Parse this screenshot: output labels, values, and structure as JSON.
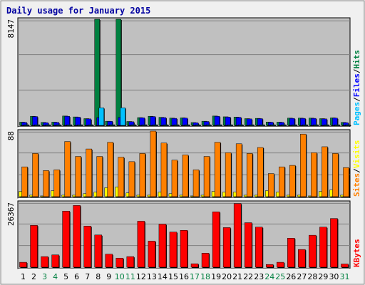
{
  "chart_data": {
    "type": "bar",
    "title": "Daily usage for January 2015",
    "categories": [
      "1",
      "2",
      "3",
      "4",
      "5",
      "6",
      "7",
      "8",
      "9",
      "10",
      "11",
      "12",
      "13",
      "14",
      "15",
      "16",
      "17",
      "18",
      "19",
      "20",
      "21",
      "22",
      "23",
      "24",
      "25",
      "26",
      "27",
      "28",
      "29",
      "30",
      "31"
    ],
    "weekend_days": [
      "3",
      "4",
      "10",
      "11",
      "17",
      "18",
      "24",
      "25",
      "31"
    ],
    "colors": {
      "background": "#c0c0c0",
      "frame": "#f0f0f0",
      "title": "#0000a0",
      "hits": "#008040",
      "files": "#0000ff",
      "pages": "#00c0ff",
      "visits": "#ffff00",
      "sites": "#ff8000",
      "kbytes": "#ff0000",
      "weekday_label": "#000000",
      "weekend_label": "#008040"
    },
    "panels": [
      {
        "max_label": "8147",
        "ylim": [
          0,
          8147
        ],
        "legend": [
          {
            "text": "Pages",
            "color": "#00c0ff"
          },
          {
            "text": "/",
            "color": "#000000"
          },
          {
            "text": "Files",
            "color": "#0000ff"
          },
          {
            "text": "/",
            "color": "#000000"
          },
          {
            "text": "Hits",
            "color": "#008040"
          }
        ],
        "series": [
          {
            "name": "Hits",
            "color": "#008040",
            "values": [
              250,
              700,
              230,
              250,
              720,
              650,
              520,
              8147,
              320,
              8147,
              300,
              600,
              700,
              620,
              560,
              580,
              220,
              320,
              720,
              660,
              640,
              520,
              540,
              260,
              250,
              560,
              560,
              560,
              520,
              580,
              230
            ]
          },
          {
            "name": "Files",
            "color": "#0000ff",
            "values": [
              230,
              680,
              210,
              230,
              700,
              630,
              500,
              600,
              310,
              610,
              280,
              580,
              680,
              600,
              540,
              560,
              200,
              300,
              700,
              640,
              620,
              500,
              520,
              240,
              230,
              540,
              540,
              540,
              500,
              560,
              210
            ]
          },
          {
            "name": "Pages",
            "color": "#00c0ff",
            "values": [
              20,
              40,
              20,
              20,
              40,
              40,
              40,
              1350,
              20,
              1350,
              20,
              40,
              40,
              40,
              40,
              40,
              20,
              20,
              40,
              40,
              40,
              40,
              40,
              20,
              20,
              40,
              40,
              40,
              40,
              40,
              20
            ]
          }
        ]
      },
      {
        "max_label": "88",
        "ylim": [
          0,
          88
        ],
        "legend": [
          {
            "text": "Sites",
            "color": "#ff8000"
          },
          {
            "text": "/",
            "color": "#000000"
          },
          {
            "text": "Visits",
            "color": "#ffff00"
          }
        ],
        "series": [
          {
            "name": "Visits",
            "color": "#ffff00",
            "values": [
              7,
              2,
              1,
              8,
              2,
              2,
              4,
              6,
              12,
              13,
              5,
              2,
              2,
              6,
              4,
              2,
              1,
              2,
              7,
              6,
              6,
              2,
              2,
              8,
              6,
              2,
              2,
              1,
              7,
              9,
              2
            ]
          },
          {
            "name": "Sites",
            "color": "#ff8000",
            "values": [
              40,
              58,
              35,
              36,
              74,
              54,
              64,
              54,
              73,
              53,
              47,
              58,
              88,
              72,
              49,
              56,
              36,
              54,
              73,
              59,
              71,
              58,
              66,
              31,
              40,
              42,
              84,
              59,
              67,
              58,
              39
            ]
          }
        ]
      },
      {
        "max_label": "26367",
        "ylim": [
          0,
          26367
        ],
        "legend": [
          {
            "text": "KBytes",
            "color": "#ff0000"
          }
        ],
        "series": [
          {
            "name": "KBytes",
            "color": "#ff0000",
            "values": [
              2000,
              17000,
              4300,
              5000,
              22800,
              25100,
              16700,
              13100,
              5300,
              3700,
              4300,
              18700,
              10600,
              17500,
              14300,
              15000,
              1400,
              5700,
              22500,
              16100,
              25900,
              18100,
              16300,
              1100,
              2000,
              11800,
              7200,
              13000,
              16300,
              19800,
              1300
            ]
          }
        ]
      }
    ]
  }
}
